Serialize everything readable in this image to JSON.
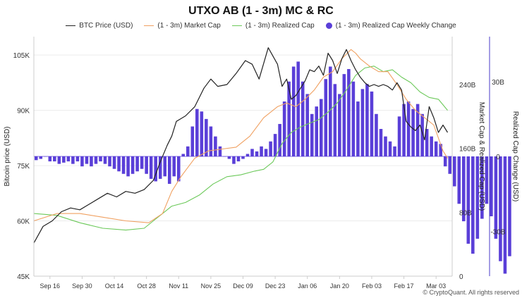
{
  "chart_data": {
    "type": "line",
    "title": "UTXO AB (1 - 3m) MC & RC",
    "watermark": "© CryptoQuant. All rights reserved",
    "colors": {
      "btc": "#222222",
      "market_cap": "#f0a060",
      "realized_cap": "#6cc95a",
      "change": "#5a3fd8"
    },
    "legend": [
      {
        "name": "BTC Price (USD)",
        "marker": "line",
        "color": "#222222"
      },
      {
        "name": "(1 - 3m) Market Cap",
        "marker": "line",
        "color": "#f0a060"
      },
      {
        "name": "(1 - 3m) Realized Cap",
        "marker": "line",
        "color": "#6cc95a"
      },
      {
        "name": "(1 - 3m) Realized Cap Weekly Change",
        "marker": "dot",
        "color": "#5a3fd8"
      }
    ],
    "x_ticks": [
      "Sep 16",
      "Sep 30",
      "Oct 14",
      "Oct 28",
      "Nov 11",
      "Nov 25",
      "Dec 09",
      "Dec 23",
      "Jan 06",
      "Jan 20",
      "Feb 03",
      "Feb 17",
      "Mar 03"
    ],
    "left_axis": {
      "label": "Bitcoin price (USD)",
      "ticks": [
        "105K",
        "90K",
        "75K",
        "60K",
        "45K"
      ],
      "range": [
        45000,
        110000
      ]
    },
    "middle_axis": {
      "label": "Market Cap & Realized Cap (USD)",
      "ticks": [
        "240B",
        "160B",
        "80B",
        "0"
      ],
      "range": [
        0,
        300
      ]
    },
    "right_axis": {
      "label": "Realized Cap Change (USD)",
      "ticks": [
        "30B",
        "0",
        "-30B"
      ],
      "range": [
        -48,
        48
      ]
    },
    "x_range": [
      0,
      182
    ],
    "btc_price": {
      "name": "BTC Price (USD)",
      "x": [
        0,
        4,
        8,
        12,
        16,
        20,
        24,
        28,
        32,
        36,
        40,
        44,
        48,
        52,
        55,
        58,
        60,
        62,
        66,
        70,
        74,
        77,
        80,
        84,
        88,
        92,
        95,
        98,
        102,
        106,
        108,
        110,
        112,
        114,
        116,
        118,
        120,
        122,
        124,
        126,
        128,
        130,
        132,
        134,
        136,
        138,
        140,
        142,
        144,
        146,
        148,
        150,
        152,
        154,
        156,
        158,
        160,
        162,
        164,
        166,
        168,
        170,
        172,
        174,
        176,
        178,
        180
      ],
      "values": [
        54000,
        58500,
        60000,
        62500,
        63500,
        63000,
        64500,
        66000,
        67500,
        66500,
        68000,
        67500,
        68500,
        71000,
        76000,
        80500,
        83000,
        87000,
        88500,
        91000,
        96000,
        98500,
        96500,
        97000,
        100000,
        103500,
        102500,
        98500,
        107000,
        102500,
        96500,
        98500,
        93000,
        94000,
        96000,
        98000,
        101000,
        100500,
        102000,
        99500,
        105500,
        103500,
        100000,
        104000,
        106500,
        103500,
        101000,
        99000,
        97500,
        96500,
        97000,
        96500,
        97000,
        96500,
        95500,
        97500,
        95500,
        87000,
        85500,
        84500,
        86000,
        82000,
        91000,
        88000,
        84000,
        86000,
        84000
      ]
    },
    "market_cap": {
      "name": "(1 - 3m) Market Cap",
      "x": [
        0,
        10,
        20,
        30,
        40,
        50,
        56,
        60,
        64,
        70,
        76,
        82,
        88,
        94,
        100,
        106,
        110,
        114,
        118,
        122,
        126,
        130,
        134,
        138,
        140,
        142,
        146,
        150,
        154,
        158,
        162,
        166,
        170,
        174,
        178,
        180
      ],
      "values": [
        60000,
        62000,
        62000,
        61000,
        60000,
        59500,
        62000,
        68000,
        72000,
        77000,
        79000,
        79500,
        80000,
        83000,
        88000,
        91000,
        92000,
        91000,
        93000,
        95500,
        99000,
        100500,
        104000,
        106500,
        105500,
        104000,
        102000,
        100500,
        100500,
        97000,
        93000,
        90000,
        88000,
        86000,
        79000,
        77000
      ]
    },
    "realized_cap": {
      "name": "(1 - 3m) Realized Cap",
      "x": [
        0,
        10,
        20,
        30,
        40,
        48,
        52,
        56,
        60,
        66,
        72,
        78,
        84,
        90,
        96,
        100,
        104,
        108,
        112,
        116,
        120,
        124,
        128,
        132,
        136,
        140,
        144,
        148,
        152,
        156,
        160,
        164,
        168,
        172,
        176,
        180
      ],
      "values": [
        62000,
        61500,
        59500,
        58000,
        57500,
        58000,
        60000,
        62000,
        64000,
        65000,
        67000,
        70000,
        72000,
        72500,
        73500,
        74000,
        76000,
        81000,
        84000,
        85500,
        86500,
        87500,
        89500,
        92000,
        95500,
        99500,
        101500,
        102000,
        100500,
        101000,
        99000,
        97500,
        95000,
        93500,
        93000,
        90000
      ]
    },
    "weekly_change": {
      "name": "(1 - 3m) Realized Cap Weekly Change",
      "x_start": 0,
      "x_step": 2,
      "values": [
        -1.5,
        -1,
        0,
        -2,
        -2,
        -3,
        -2.5,
        -2,
        -3,
        -2,
        -4,
        -3,
        -4,
        -3,
        -2,
        -3,
        -4,
        -5,
        -6,
        -7,
        -8,
        -7,
        -6,
        -5,
        -7,
        -9,
        -10,
        -9,
        -8,
        -11,
        -8,
        -10,
        1,
        4,
        12,
        19,
        18,
        15,
        12,
        8,
        4,
        0,
        -1,
        -3,
        -2,
        -1,
        1,
        3,
        2,
        4,
        3,
        6,
        9,
        13,
        22,
        30,
        36,
        38,
        30,
        25,
        17,
        20,
        23,
        31,
        36,
        29,
        25,
        33,
        35,
        30,
        22,
        27,
        29,
        26,
        17,
        11,
        8,
        6,
        4,
        16,
        21,
        22,
        19,
        21,
        17,
        11,
        8,
        6,
        5,
        -4,
        -7,
        -12,
        -19,
        -26,
        -35,
        -39,
        -33,
        -25,
        -19,
        -24,
        -33,
        -42,
        -47,
        -40
      ]
    }
  }
}
